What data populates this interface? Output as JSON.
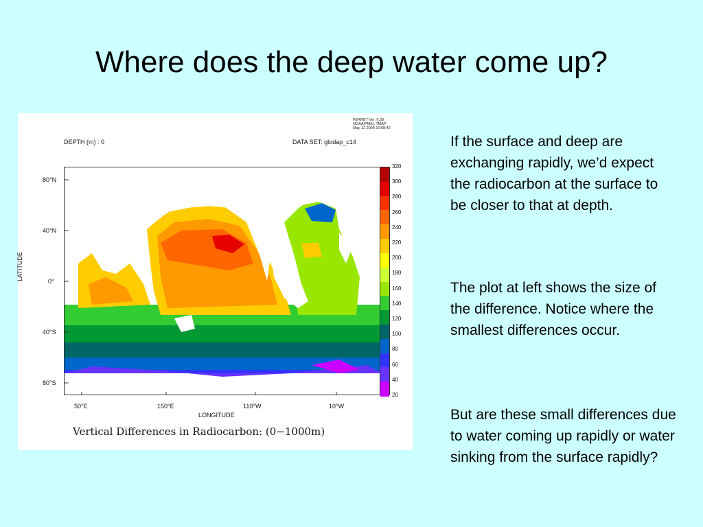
{
  "slide": {
    "title": "Where does the deep water come up?"
  },
  "figure": {
    "stamp": [
      "FERRET Ver. 6.08",
      "NOAA/PMEL TMAP",
      "May 12 2008 10:08:42"
    ],
    "depth_label": "DEPTH (m) : 0",
    "dataset_label": "DATA SET: glodap_c14",
    "ylabel": "LATITUDE",
    "xlabel": "LONGITUDE",
    "y_ticks": [
      "80°N",
      "40°N",
      "0°",
      "40°S",
      "80°S"
    ],
    "x_ticks": [
      "50°E",
      "150°E",
      "110°W",
      "10°W"
    ],
    "colorbar_levels": [
      "320",
      "300",
      "280",
      "260",
      "240",
      "220",
      "200",
      "180",
      "160",
      "140",
      "120",
      "100",
      "80",
      "60",
      "40",
      "20"
    ],
    "colorbar_colors": [
      "#b30000",
      "#e60000",
      "#ff3300",
      "#ff6600",
      "#ff9900",
      "#ffcc00",
      "#ffff00",
      "#ccff33",
      "#99e600",
      "#33cc33",
      "#009933",
      "#006666",
      "#0066cc",
      "#3333ff",
      "#6633ff",
      "#cc00ff"
    ],
    "caption": "Vertical Differences in Radiocarbon: (0−1000m)"
  },
  "text_blocks": [
    "If the surface and deep are exchanging rapidly, we’d expect the radiocarbon at the surface to be closer to that at depth.",
    "The plot at left shows the size of the difference. Notice where the smallest differences occur.",
    "But are these small differences due to water coming up rapidly or water sinking from the surface rapidly?"
  ]
}
